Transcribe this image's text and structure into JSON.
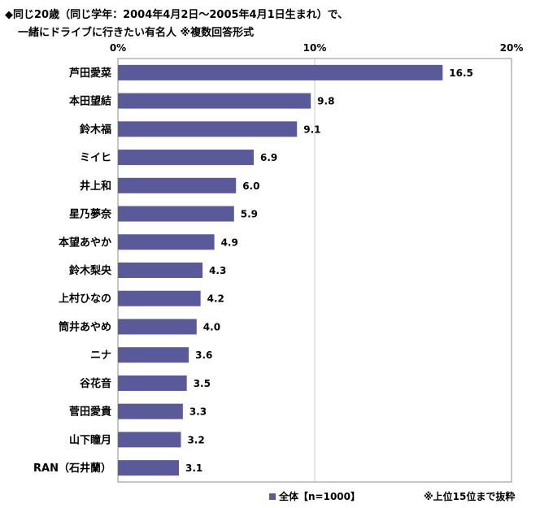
{
  "chart_data": {
    "type": "bar",
    "orientation": "horizontal",
    "title": "◆同じ20歳（同じ学年：2004年4月2日～2005年4月1日生まれ）で、",
    "subtitle": "一緒にドライブに行きたい有名人 ※複数回答形式",
    "categories": [
      "芦田愛菜",
      "本田望結",
      "鈴木福",
      "ミイヒ",
      "井上和",
      "星乃夢奈",
      "本望あやか",
      "鈴木梨央",
      "上村ひなの",
      "筒井あやめ",
      "ニナ",
      "谷花音",
      "菅田愛貴",
      "山下瞳月",
      "RAN（石井蘭）"
    ],
    "series": [
      {
        "name": "全体【n=1000】",
        "values": [
          16.5,
          9.8,
          9.1,
          6.9,
          6.0,
          5.9,
          4.9,
          4.3,
          4.2,
          4.0,
          3.6,
          3.5,
          3.3,
          3.2,
          3.1
        ],
        "color": "#5a5a9a"
      }
    ],
    "value_labels": [
      "16.5",
      "9.8",
      "9.1",
      "6.9",
      "6.0",
      "5.9",
      "4.9",
      "4.3",
      "4.2",
      "4.0",
      "3.6",
      "3.5",
      "3.3",
      "3.2",
      "3.1"
    ],
    "xlim": [
      0,
      20
    ],
    "xticks": [
      "0%",
      "10%",
      "20%"
    ],
    "grid": true,
    "legend_position": "bottom",
    "note": "※上位15位まで抜粋"
  }
}
